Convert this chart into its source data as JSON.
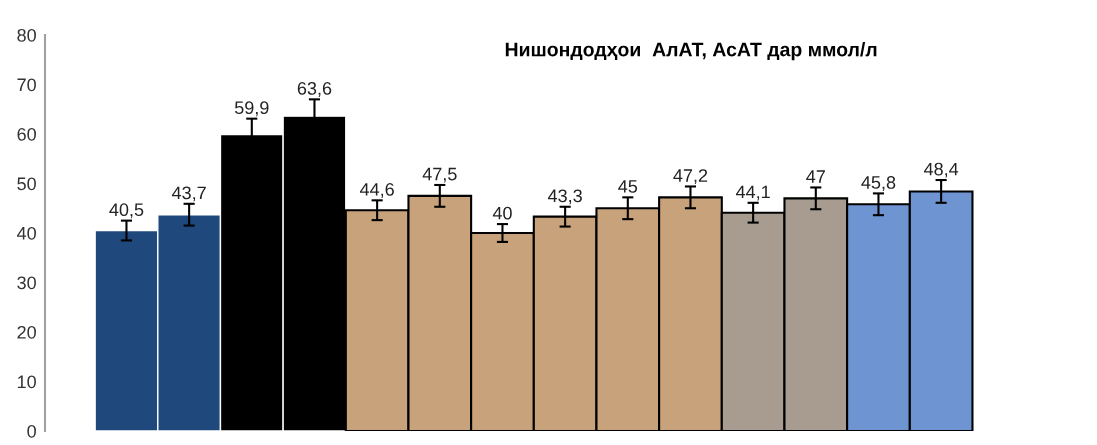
{
  "chart_data": {
    "type": "bar",
    "title": "Нишондодҳои  АлАТ, АсАТ дар ммол/л",
    "categories": [
      null,
      null,
      null,
      null,
      null,
      null,
      null,
      null,
      null,
      null,
      null,
      null,
      null,
      null
    ],
    "values": [
      40.5,
      43.7,
      59.9,
      63.6,
      44.6,
      47.5,
      40,
      43.3,
      45,
      47.2,
      44.1,
      47,
      45.8,
      48.4
    ],
    "value_labels": [
      "40,5",
      "43,7",
      "59,9",
      "63,6",
      "44,6",
      "47,5",
      "40",
      "43,3",
      "45",
      "47,2",
      "44,1",
      "47",
      "45,8",
      "48,4"
    ],
    "errors": [
      2,
      2.2,
      3.2,
      3.4,
      2,
      2.2,
      1.8,
      2,
      2.2,
      2.2,
      2,
      2.2,
      2.2,
      2.3
    ],
    "colors": [
      "#1f497d",
      "#1f497d",
      "#000000",
      "#000000",
      "#c8a27a",
      "#c8a27a",
      "#c8a27a",
      "#c8a27a",
      "#c8a27a",
      "#c8a27a",
      "#a89c90",
      "#a89c90",
      "#6f94d2",
      "#6f94d2"
    ],
    "ylim": [
      0,
      80
    ],
    "yticks": [
      0,
      10,
      20,
      30,
      40,
      50,
      60,
      70,
      80
    ],
    "grid": false,
    "legend": false
  }
}
